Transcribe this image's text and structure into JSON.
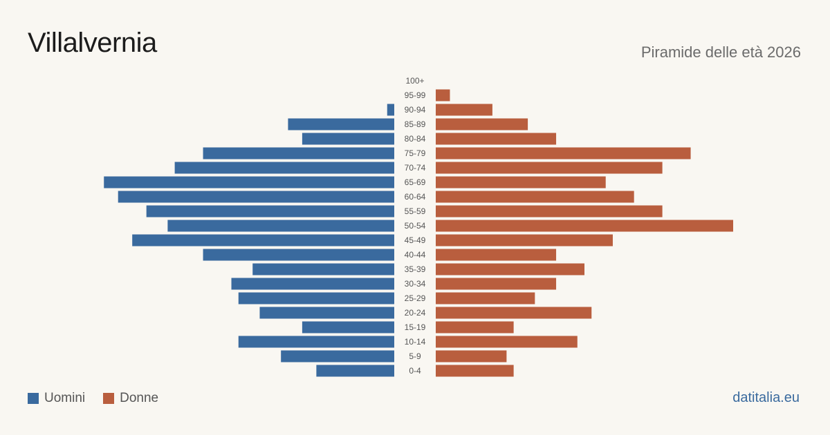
{
  "header": {
    "title": "Villalvernia",
    "subtitle": "Piramide delle età 2026"
  },
  "legend": {
    "men_label": "Uomini",
    "women_label": "Donne"
  },
  "colors": {
    "men": "#3a6a9e",
    "women": "#b95e3e",
    "background": "#f9f7f2"
  },
  "brand": "datitalia.eu",
  "chart_data": {
    "type": "bar",
    "orientation": "horizontal-pyramid",
    "categories": [
      "100+",
      "95-99",
      "90-94",
      "85-89",
      "80-84",
      "75-79",
      "70-74",
      "65-69",
      "60-64",
      "55-59",
      "50-54",
      "45-49",
      "40-44",
      "35-39",
      "30-34",
      "25-29",
      "20-24",
      "15-19",
      "10-14",
      "5-9",
      "0-4"
    ],
    "series": [
      {
        "name": "Uomini",
        "values": [
          0,
          0,
          1,
          15,
          13,
          27,
          31,
          41,
          39,
          35,
          32,
          37,
          27,
          20,
          23,
          22,
          19,
          13,
          22,
          16,
          11
        ]
      },
      {
        "name": "Donne",
        "values": [
          0,
          2,
          8,
          13,
          17,
          36,
          32,
          24,
          28,
          32,
          42,
          25,
          17,
          21,
          17,
          14,
          22,
          11,
          20,
          10,
          11
        ]
      }
    ]
  }
}
